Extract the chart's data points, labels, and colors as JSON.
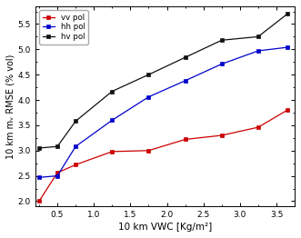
{
  "x": [
    0.25,
    0.5,
    0.75,
    1.25,
    1.75,
    2.25,
    2.75,
    3.25,
    3.65
  ],
  "vv": [
    2.0,
    2.56,
    2.72,
    2.98,
    3.0,
    3.22,
    3.3,
    3.46,
    3.8
  ],
  "hh": [
    2.47,
    2.5,
    3.08,
    3.6,
    4.06,
    4.38,
    4.71,
    4.97,
    5.04
  ],
  "hv": [
    3.05,
    3.08,
    3.58,
    4.17,
    4.5,
    4.84,
    5.18,
    5.25,
    5.7
  ],
  "vv_color": "#cc0000",
  "hh_color": "#0000cc",
  "hv_color": "#111111",
  "xlabel": "10 km VWC [Kg/m²]",
  "ylabel": "10 km mᵥ RMSE (% vol)",
  "xlim": [
    0.2,
    3.75
  ],
  "ylim": [
    1.9,
    5.85
  ],
  "xticks": [
    0.5,
    1.0,
    1.5,
    2.0,
    2.5,
    3.0,
    3.5
  ],
  "yticks": [
    2.0,
    2.5,
    3.0,
    3.5,
    4.0,
    4.5,
    5.0,
    5.5
  ],
  "legend_labels": [
    "vv pol",
    "hh pol",
    "hv pol"
  ],
  "bg_color": "#ffffff"
}
